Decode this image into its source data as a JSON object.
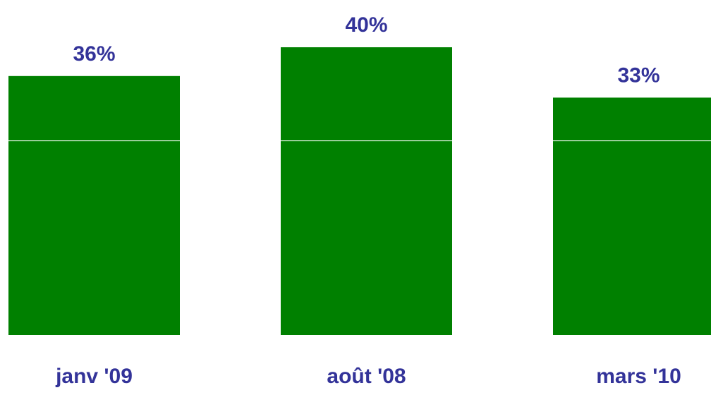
{
  "chart_data": {
    "type": "bar",
    "categories": [
      "janv '09",
      "août '08",
      "mars '10"
    ],
    "values": [
      36,
      40,
      33
    ],
    "value_labels": [
      "36%",
      "40%",
      "33%"
    ],
    "ylim": [
      0,
      45
    ],
    "grid": true,
    "legend": "none",
    "colors": {
      "bar": "#008000",
      "label": "#333399",
      "gridline": "#ffffff"
    }
  }
}
